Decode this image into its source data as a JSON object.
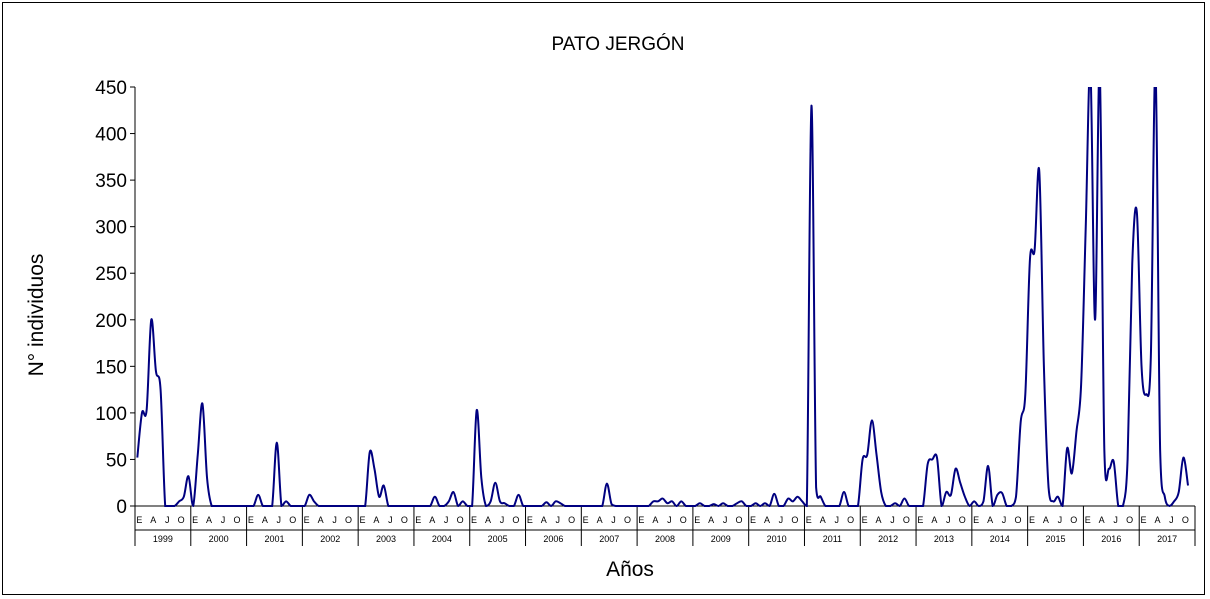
{
  "chart_data": {
    "type": "line",
    "title": "PATO JERGÓN",
    "xlabel": "Años",
    "ylabel": "N° individuos",
    "ylim": [
      0,
      450
    ],
    "yticks": [
      0,
      50,
      100,
      150,
      200,
      250,
      300,
      350,
      400,
      450
    ],
    "grid": false,
    "legend": "none",
    "month_labels": [
      "E",
      "A",
      "J",
      "O"
    ],
    "years": [
      "1999",
      "2000",
      "2001",
      "2002",
      "2003",
      "2004",
      "2005",
      "2006",
      "2007",
      "2008",
      "2009",
      "2010",
      "2011",
      "2012",
      "2013",
      "2014",
      "2015",
      "2016",
      "2017"
    ],
    "line_color": "#000080",
    "series": [
      {
        "values": [
          52,
          100,
          103,
          200,
          145,
          125,
          0,
          0,
          0,
          5,
          10,
          32,
          0,
          55,
          110,
          30,
          0,
          0,
          0,
          0,
          0,
          0,
          0,
          0,
          0,
          0,
          12,
          0,
          0,
          0,
          68,
          0,
          5,
          0,
          0,
          0,
          0,
          12,
          5,
          0,
          0,
          0,
          0,
          0,
          0,
          0,
          0,
          0,
          0,
          0,
          58,
          40,
          10,
          22,
          0,
          0,
          0,
          0,
          0,
          0,
          0,
          0,
          0,
          0,
          10,
          0,
          0,
          5,
          15,
          0,
          5,
          0,
          0,
          103,
          30,
          0,
          5,
          25,
          5,
          3,
          0,
          0,
          12,
          0,
          0,
          0,
          0,
          0,
          4,
          0,
          5,
          3,
          0,
          0,
          0,
          0,
          0,
          0,
          0,
          0,
          0,
          24,
          2,
          0,
          0,
          0,
          0,
          0,
          0,
          0,
          0,
          5,
          5,
          8,
          3,
          5,
          0,
          5,
          0,
          0,
          0,
          3,
          0,
          0,
          2,
          0,
          3,
          0,
          0,
          3,
          5,
          0,
          0,
          3,
          0,
          3,
          0,
          13,
          0,
          0,
          8,
          5,
          10,
          5,
          0,
          430,
          20,
          10,
          0,
          0,
          0,
          0,
          15,
          0,
          0,
          0,
          50,
          55,
          92,
          55,
          15,
          0,
          0,
          3,
          0,
          8,
          0,
          0,
          0,
          0,
          45,
          50,
          52,
          0,
          15,
          12,
          40,
          25,
          10,
          0,
          5,
          0,
          5,
          43,
          0,
          12,
          14,
          0,
          0,
          10,
          90,
          120,
          265,
          275,
          360,
          150,
          20,
          5,
          10,
          0,
          62,
          35,
          80,
          130,
          300,
          470,
          200,
          470,
          60,
          40,
          48,
          0,
          0,
          50,
          260,
          315,
          150,
          120,
          160,
          470,
          60,
          10,
          0,
          5,
          15,
          52,
          22
        ]
      }
    ]
  }
}
